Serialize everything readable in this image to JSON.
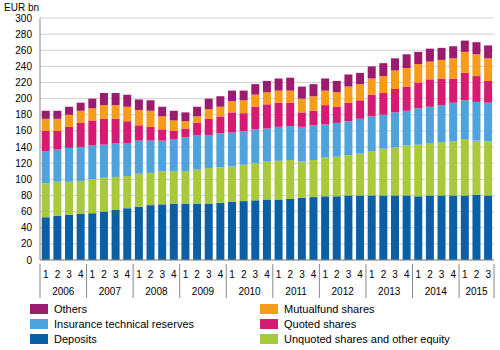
{
  "chart_data": {
    "type": "bar",
    "stacked": true,
    "grid": true,
    "legend": "bottom",
    "y_label": "EUR bn",
    "categories": [
      "1",
      "2",
      "3",
      "4",
      "1",
      "2",
      "3",
      "4",
      "1",
      "2",
      "3",
      "4",
      "1",
      "2",
      "3",
      "4",
      "1",
      "2",
      "3",
      "4",
      "1",
      "2",
      "3",
      "4",
      "1",
      "2",
      "3",
      "4",
      "1",
      "2",
      "3",
      "4",
      "1",
      "2",
      "3",
      "4",
      "1",
      "2",
      "3"
    ],
    "year_labels": [
      "2006",
      "2007",
      "2008",
      "2009",
      "2010",
      "2011",
      "2012",
      "2013",
      "2014",
      "2015"
    ],
    "ylim": [
      0,
      300
    ],
    "yticks": [
      0,
      20,
      40,
      60,
      80,
      100,
      120,
      140,
      160,
      180,
      200,
      220,
      240,
      260,
      280,
      300
    ],
    "series": [
      {
        "name": "Deposits",
        "color": "#0b5fa5",
        "values": [
          53,
          55,
          56,
          57,
          58,
          60,
          62,
          64,
          66,
          68,
          69,
          70,
          70,
          70,
          70,
          71,
          72,
          73,
          74,
          75,
          75,
          76,
          77,
          78,
          79,
          79,
          80,
          80,
          80,
          80,
          80,
          80,
          79,
          80,
          80,
          80,
          80,
          81,
          80
        ]
      },
      {
        "name": "Unquoted shares and other equity",
        "color": "#a8c93a",
        "values": [
          42,
          42,
          41,
          41,
          42,
          42,
          41,
          40,
          41,
          40,
          41,
          40,
          40,
          42,
          44,
          44,
          44,
          45,
          46,
          47,
          48,
          48,
          45,
          46,
          48,
          49,
          50,
          52,
          55,
          58,
          60,
          62,
          64,
          65,
          66,
          67,
          70,
          67,
          67
        ]
      },
      {
        "name": "Insurance technical reserves",
        "color": "#4ea3dc",
        "values": [
          40,
          40,
          42,
          42,
          42,
          41,
          42,
          41,
          41,
          40,
          38,
          40,
          42,
          43,
          41,
          42,
          42,
          42,
          42,
          41,
          42,
          42,
          43,
          43,
          41,
          42,
          42,
          43,
          43,
          42,
          43,
          43,
          45,
          45,
          46,
          48,
          48,
          48,
          48
        ]
      },
      {
        "name": "Quoted shares",
        "color": "#d81b72",
        "values": [
          25,
          23,
          26,
          30,
          31,
          32,
          30,
          27,
          19,
          17,
          14,
          10,
          11,
          15,
          20,
          21,
          25,
          22,
          28,
          30,
          30,
          29,
          18,
          18,
          24,
          20,
          23,
          23,
          27,
          27,
          29,
          30,
          32,
          34,
          33,
          30,
          34,
          32,
          27
        ]
      },
      {
        "name": "Mutualfund shares",
        "color": "#f59c1a",
        "values": [
          15,
          15,
          15,
          15,
          15,
          17,
          17,
          18,
          19,
          20,
          16,
          13,
          9,
          8,
          12,
          12,
          14,
          16,
          15,
          15,
          15,
          15,
          17,
          18,
          18,
          18,
          20,
          20,
          20,
          21,
          23,
          23,
          23,
          22,
          23,
          25,
          26,
          27,
          28
        ]
      },
      {
        "name": "Others",
        "color": "#9b1b6f",
        "values": [
          10,
          10,
          10,
          10,
          12,
          15,
          15,
          15,
          13,
          13,
          12,
          12,
          11,
          12,
          13,
          13,
          13,
          12,
          13,
          14,
          15,
          16,
          15,
          15,
          15,
          14,
          15,
          14,
          15,
          16,
          15,
          17,
          15,
          16,
          15,
          15,
          14,
          15,
          16
        ]
      }
    ]
  }
}
